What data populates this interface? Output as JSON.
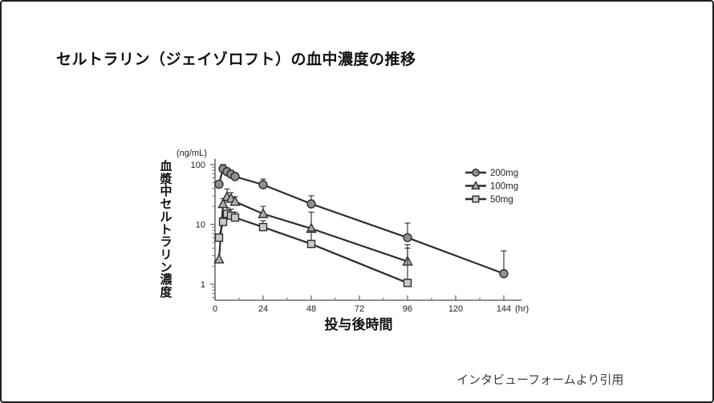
{
  "page": {
    "title": "セルトラリン（ジェイゾロフト）の血中濃度の推移",
    "citation": "インタビューフォームより引用"
  },
  "chart_data": {
    "type": "line",
    "title": "セルトラリン（ジェイゾロフト）の血中濃度の推移",
    "xlabel": "投与後時間",
    "ylabel": "血漿中セルトラリン濃度",
    "y_unit": "(ng/mL)",
    "x_unit": "(hr)",
    "x_scale": "linear",
    "y_scale": "log",
    "xlim": [
      0,
      150
    ],
    "ylim": [
      0.5,
      120
    ],
    "x_ticks": [
      0,
      24,
      48,
      72,
      96,
      120,
      144
    ],
    "x_minor_ticks": [
      12,
      36,
      60,
      84,
      108,
      132
    ],
    "y_ticks": [
      100,
      10,
      1
    ],
    "grid": false,
    "legend_position": "upper right",
    "series": [
      {
        "name": "200mg",
        "marker": "circle",
        "fill": "#8f8f8f",
        "x": [
          2,
          4,
          6,
          8,
          10,
          24,
          48,
          96,
          144
        ],
        "y": [
          47,
          85,
          76,
          69,
          63,
          46,
          22,
          6,
          1.5
        ],
        "err_up": [
          null,
          100,
          88,
          80,
          73,
          57,
          30,
          10.5,
          3.6
        ]
      },
      {
        "name": "100mg",
        "marker": "triangle",
        "fill": "#ababab",
        "x": [
          2,
          4,
          6,
          8,
          10,
          24,
          48,
          96
        ],
        "y": [
          2.6,
          22,
          29,
          27,
          24,
          15,
          8.5,
          2.4
        ],
        "err_up": [
          null,
          27,
          39,
          34,
          29,
          20,
          16,
          4.6
        ]
      },
      {
        "name": "50mg",
        "marker": "square",
        "fill": "#c9c9c9",
        "x": [
          2,
          4,
          6,
          8,
          10,
          24,
          48,
          96
        ],
        "y": [
          6,
          11,
          15,
          14,
          13,
          9,
          4.7,
          1.05
        ],
        "err_up": [
          null,
          13,
          19,
          18,
          16,
          11.5,
          7.8,
          4.0
        ]
      }
    ]
  },
  "colors": {
    "line": "#2d2d2d",
    "marker_stroke": "#2d2d2d",
    "error_bar": "#3a3a3a",
    "axis": "#6b6b6b",
    "tick_text": "#222222",
    "label_text": "#111111"
  }
}
